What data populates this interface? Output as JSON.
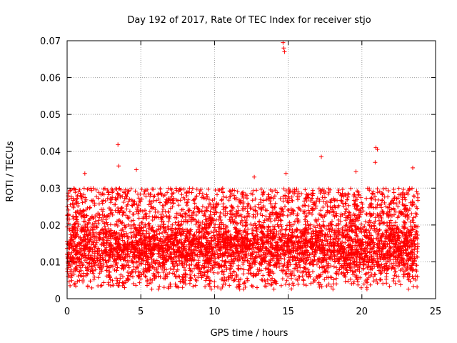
{
  "chart_data": {
    "type": "scatter",
    "title": "Day 192 of 2017, Rate Of TEC Index for receiver stjo",
    "xlabel": "GPS time / hours",
    "ylabel": "ROTI / TECUs",
    "xlim": [
      0,
      25
    ],
    "ylim": [
      0,
      0.07
    ],
    "x_ticks": [
      0,
      5,
      10,
      15,
      20,
      25
    ],
    "x_tick_labels": [
      "0",
      "5",
      "10",
      "15",
      "20",
      "25"
    ],
    "y_ticks": [
      0,
      0.01,
      0.02,
      0.03,
      0.04,
      0.05,
      0.06,
      0.07
    ],
    "y_tick_labels": [
      "0",
      "0.01",
      "0.02",
      "0.03",
      "0.04",
      "0.05",
      "0.06",
      "0.07"
    ],
    "grid": true,
    "marker": "plus",
    "color": "#ff0000",
    "series": [
      {
        "name": "ROTI",
        "x_range": [
          0,
          23.8
        ],
        "dense_band": [
          0.006,
          0.022
        ],
        "typical_upper": 0.03,
        "outliers": [
          {
            "x": 3.45,
            "y": 0.0418
          },
          {
            "x": 3.5,
            "y": 0.036
          },
          {
            "x": 14.65,
            "y": 0.0695
          },
          {
            "x": 14.7,
            "y": 0.068
          },
          {
            "x": 14.75,
            "y": 0.067
          },
          {
            "x": 17.25,
            "y": 0.0385
          },
          {
            "x": 20.95,
            "y": 0.041
          },
          {
            "x": 21.05,
            "y": 0.0405
          },
          {
            "x": 20.9,
            "y": 0.037
          },
          {
            "x": 23.45,
            "y": 0.0355
          },
          {
            "x": 4.7,
            "y": 0.035
          },
          {
            "x": 19.6,
            "y": 0.0345
          },
          {
            "x": 1.2,
            "y": 0.034
          },
          {
            "x": 14.85,
            "y": 0.034
          },
          {
            "x": 12.7,
            "y": 0.033
          },
          {
            "x": 1.4,
            "y": 0.0032
          },
          {
            "x": 3.9,
            "y": 0.003
          },
          {
            "x": 6.9,
            "y": 0.0032
          },
          {
            "x": 0.2,
            "y": 0.0035
          },
          {
            "x": 23.5,
            "y": 0.0055
          }
        ]
      }
    ]
  }
}
